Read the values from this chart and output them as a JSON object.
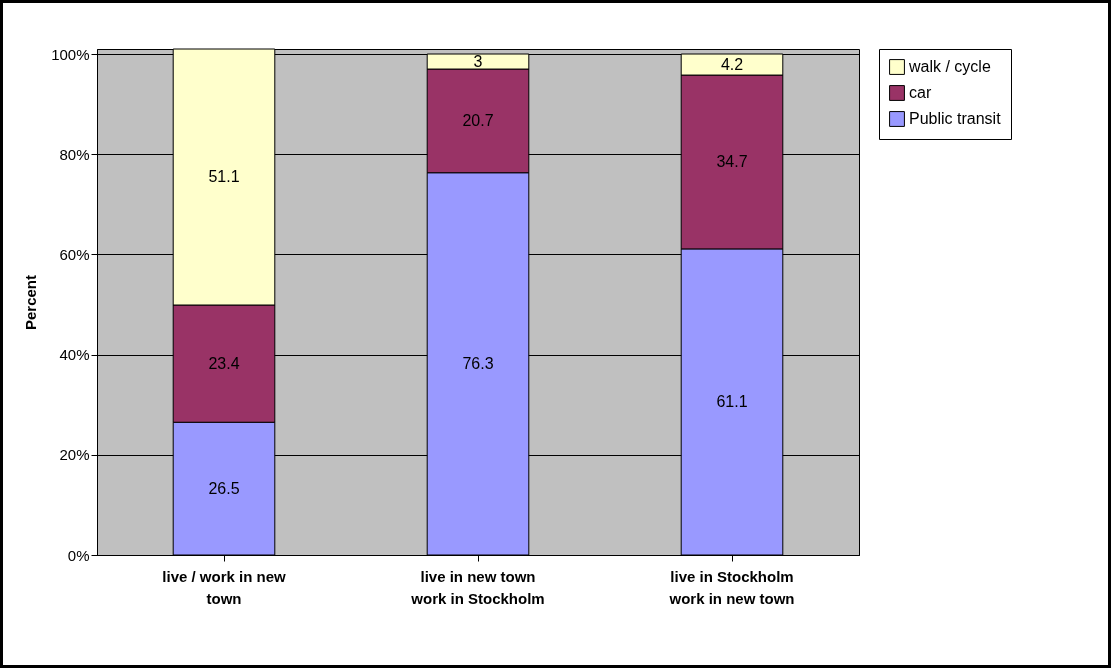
{
  "chart_data": {
    "type": "bar",
    "stacked": true,
    "ylabel": "Percent",
    "categories": [
      "live / work in new town",
      "live in new town work in Stockholm",
      "live in Stockholm work in new town"
    ],
    "series": [
      {
        "name": "Public transit",
        "color": "#9999ff",
        "values": [
          26.5,
          76.3,
          61.1
        ]
      },
      {
        "name": "car",
        "color": "#993366",
        "values": [
          23.4,
          20.7,
          34.7
        ]
      },
      {
        "name": "walk / cycle",
        "color": "#ffffcc",
        "values": [
          51.1,
          3,
          4.2
        ]
      }
    ],
    "ylim": [
      0,
      101
    ],
    "yticks": [
      {
        "value": 0,
        "label": "0%"
      },
      {
        "value": 20,
        "label": "20%"
      },
      {
        "value": 40,
        "label": "40%"
      },
      {
        "value": 60,
        "label": "60%"
      },
      {
        "value": 80,
        "label": "80%"
      },
      {
        "value": 100,
        "label": "100%"
      }
    ],
    "grid": "y",
    "legend": "right",
    "data_labels": true
  }
}
